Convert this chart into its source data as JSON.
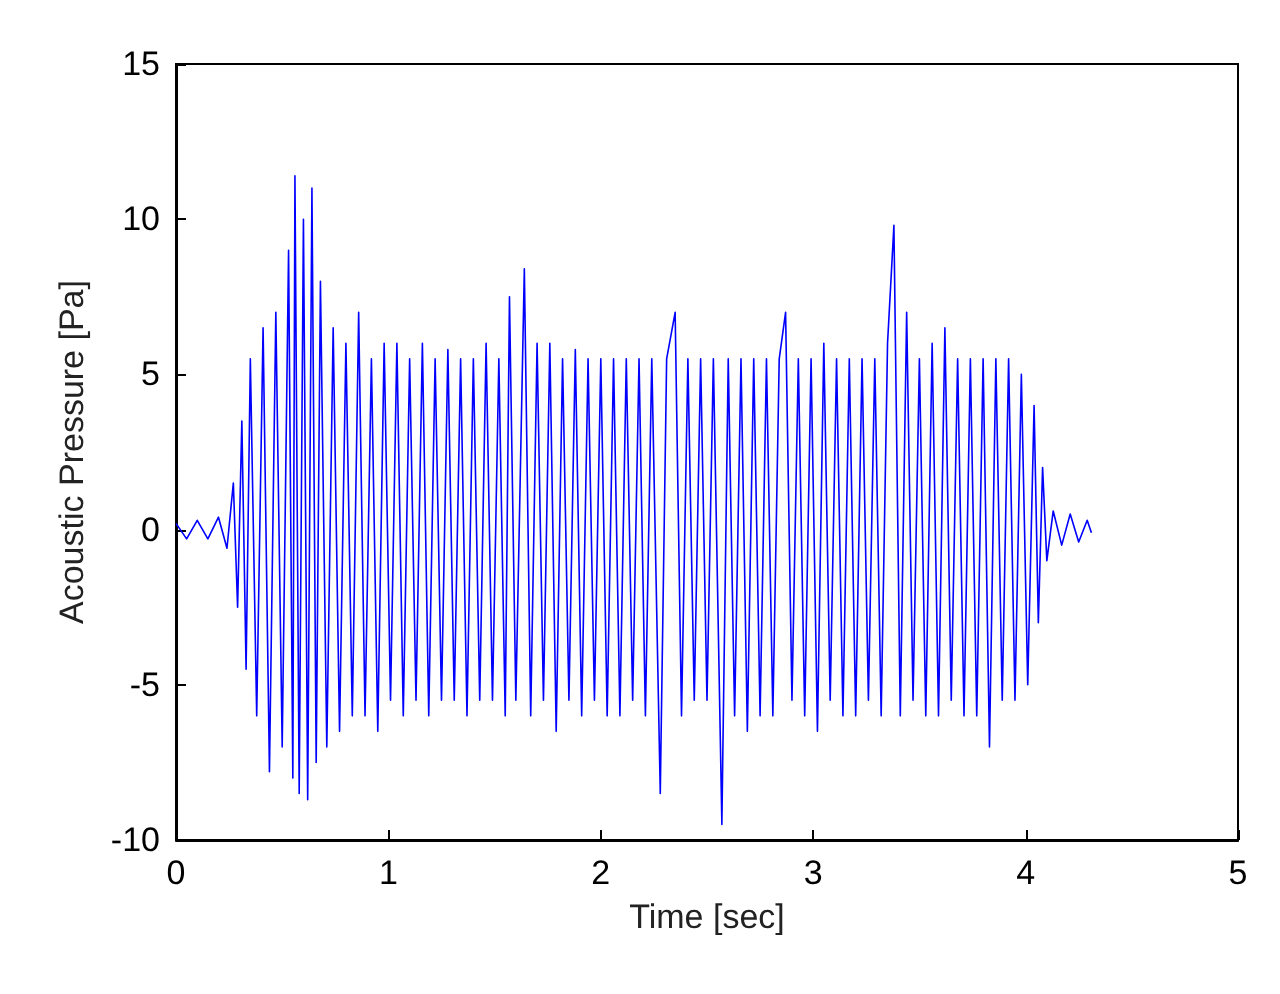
{
  "chart_data": {
    "type": "line",
    "xlabel": "Time [sec]",
    "ylabel": "Acoustic Pressure [Pa]",
    "xlim": [
      0,
      5
    ],
    "xticks": [
      0,
      1,
      2,
      3,
      4,
      5
    ],
    "ylim": [
      -10,
      15
    ],
    "yticks": [
      -10,
      -5,
      0,
      5,
      10,
      15
    ],
    "grid": false,
    "marker": "none",
    "line_style": "solid",
    "series": [
      {
        "color": "#0000ff",
        "x": [
          0,
          0.05,
          0.1,
          0.15,
          0.2,
          0.24,
          0.27,
          0.29,
          0.31,
          0.33,
          0.35,
          0.38,
          0.41,
          0.44,
          0.47,
          0.5,
          0.53,
          0.55,
          0.56,
          0.58,
          0.6,
          0.62,
          0.64,
          0.66,
          0.68,
          0.71,
          0.74,
          0.77,
          0.8,
          0.83,
          0.86,
          0.89,
          0.92,
          0.95,
          0.98,
          1.01,
          1.04,
          1.07,
          1.1,
          1.13,
          1.16,
          1.19,
          1.22,
          1.25,
          1.28,
          1.31,
          1.34,
          1.37,
          1.4,
          1.43,
          1.46,
          1.49,
          1.52,
          1.55,
          1.57,
          1.6,
          1.64,
          1.67,
          1.7,
          1.73,
          1.76,
          1.79,
          1.82,
          1.85,
          1.88,
          1.91,
          1.94,
          1.97,
          2.0,
          2.03,
          2.06,
          2.09,
          2.12,
          2.15,
          2.18,
          2.21,
          2.24,
          2.28,
          2.31,
          2.35,
          2.38,
          2.41,
          2.44,
          2.47,
          2.5,
          2.53,
          2.57,
          2.6,
          2.63,
          2.66,
          2.69,
          2.72,
          2.75,
          2.78,
          2.81,
          2.84,
          2.87,
          2.9,
          2.93,
          2.96,
          2.99,
          3.02,
          3.05,
          3.08,
          3.11,
          3.14,
          3.17,
          3.2,
          3.23,
          3.26,
          3.29,
          3.32,
          3.35,
          3.38,
          3.41,
          3.44,
          3.47,
          3.5,
          3.53,
          3.56,
          3.59,
          3.62,
          3.65,
          3.68,
          3.71,
          3.74,
          3.77,
          3.8,
          3.83,
          3.86,
          3.89,
          3.92,
          3.95,
          3.98,
          4.01,
          4.04,
          4.06,
          4.08,
          4.1,
          4.13,
          4.17,
          4.21,
          4.25,
          4.29,
          4.31
        ],
        "values": [
          0.2,
          -0.3,
          0.3,
          -0.3,
          0.4,
          -0.6,
          1.5,
          -2.5,
          3.5,
          -4.5,
          5.5,
          -6,
          6.5,
          -7.8,
          7,
          -7,
          9,
          -8,
          11.4,
          -8.5,
          10,
          -8.7,
          11,
          -7.5,
          8,
          -7,
          6.5,
          -6.5,
          6,
          -6,
          7,
          -6,
          5.5,
          -6.5,
          6,
          -5.5,
          6,
          -6,
          5.5,
          -5.5,
          6,
          -6,
          5.5,
          -5.5,
          5.8,
          -5.5,
          5.5,
          -6,
          5.5,
          -5.5,
          6,
          -5.5,
          5.5,
          -6,
          7.5,
          -5.5,
          8.4,
          -6,
          6,
          -5.5,
          6,
          -6.5,
          5.5,
          -5.5,
          5.8,
          -6,
          5.5,
          -5.5,
          5.5,
          -6,
          5.5,
          -6,
          5.5,
          -5.5,
          5.5,
          -6,
          5.5,
          -8.5,
          5.5,
          7,
          -6,
          5.5,
          -5.5,
          5.5,
          -5.5,
          5.5,
          -9.5,
          5.5,
          -6,
          5.5,
          -6.5,
          5.5,
          -6,
          5.5,
          -6,
          5.5,
          7,
          -5.5,
          5.5,
          -6,
          5.5,
          -6.5,
          6,
          -5.5,
          5.5,
          -6,
          5.5,
          -6,
          5.5,
          -5.5,
          5.5,
          -6,
          6,
          9.8,
          -6,
          7,
          -5.5,
          5.5,
          -6,
          6,
          -6,
          6.5,
          -5.5,
          5.5,
          -6,
          5.5,
          -6,
          5.5,
          -7,
          5.5,
          -5.5,
          5.5,
          -5.5,
          5,
          -5,
          4,
          -3,
          2,
          -1,
          0.6,
          -0.5,
          0.5,
          -0.4,
          0.3,
          -0.1
        ]
      }
    ]
  }
}
